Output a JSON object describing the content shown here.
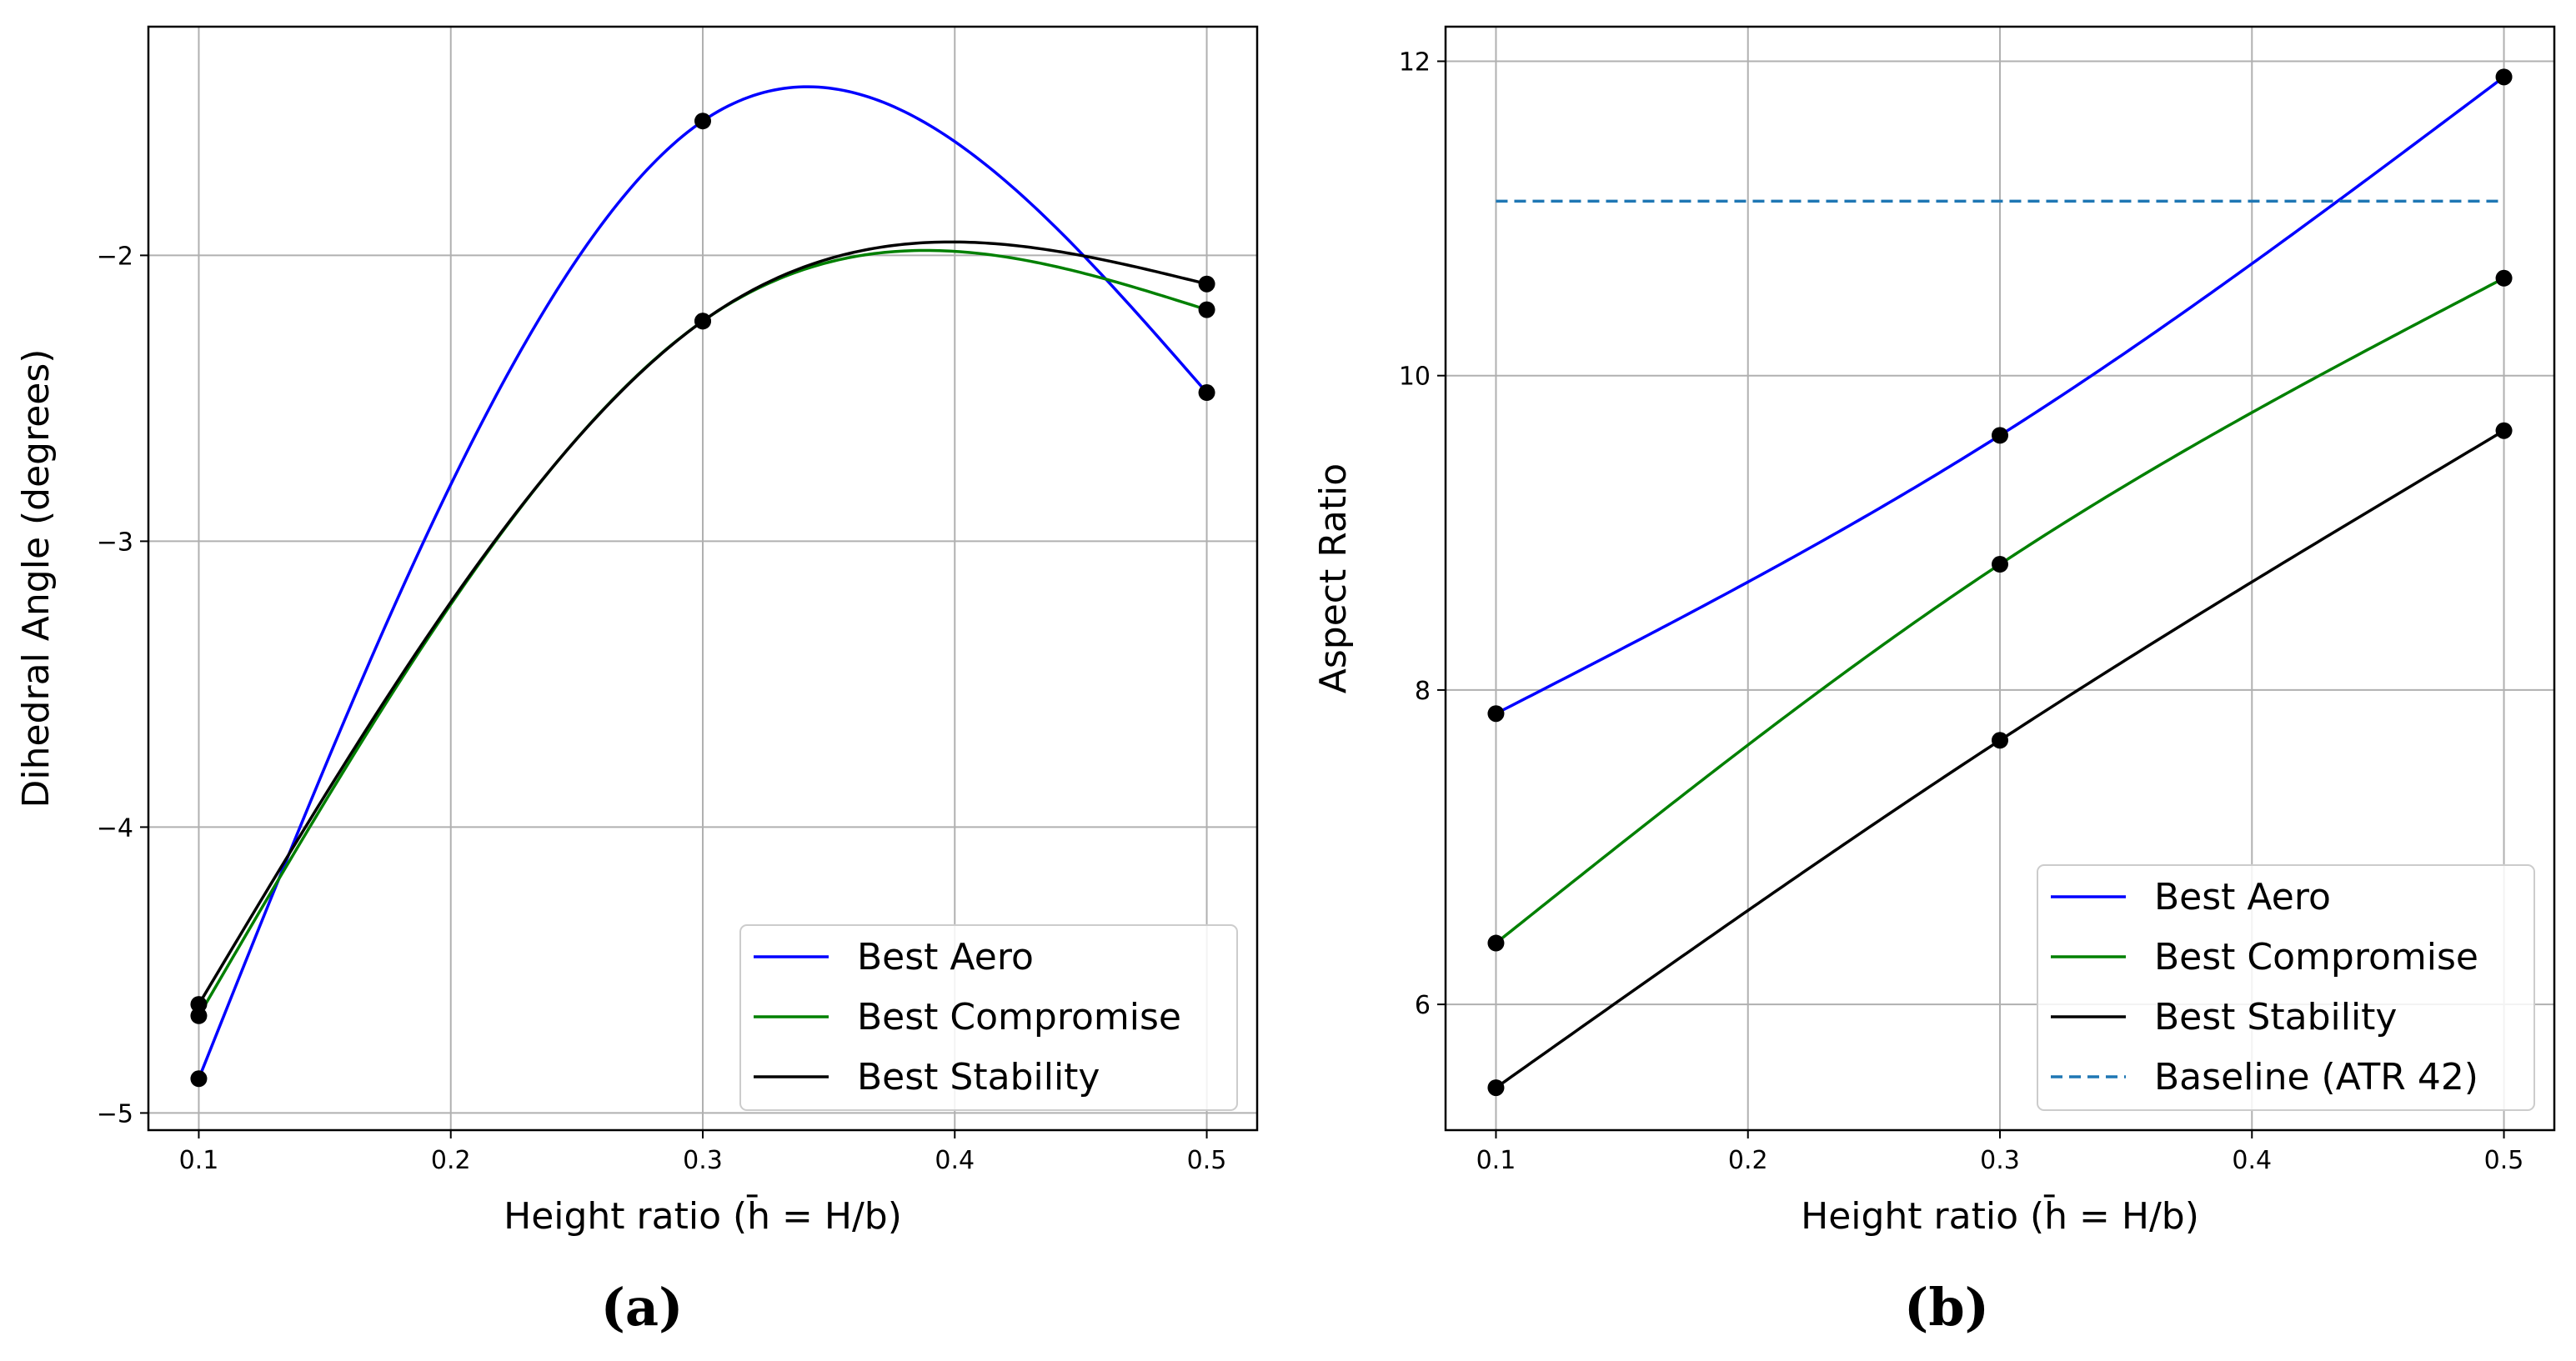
{
  "chart_data": [
    {
      "type": "line",
      "panel_label": "(a)",
      "title": "",
      "xlabel": "Height ratio (h̄ = H/b)",
      "ylabel": "Dihedral Angle (degrees)",
      "xlim": [
        0.08,
        0.52
      ],
      "ylim": [
        -5.06,
        -1.2
      ],
      "xticks": [
        0.1,
        0.2,
        0.3,
        0.4,
        0.5
      ],
      "xtick_labels": [
        "0.1",
        "0.2",
        "0.3",
        "0.4",
        "0.5"
      ],
      "yticks": [
        -5,
        -4,
        -3,
        -2
      ],
      "ytick_labels": [
        "−5",
        "−4",
        "−3",
        "−2"
      ],
      "grid": true,
      "legend_position": "lower-right",
      "series": [
        {
          "name": "Best Aero",
          "color": "#0000ff",
          "style": "solid",
          "x": [
            0.1,
            0.3,
            0.5
          ],
          "y": [
            -4.88,
            -1.53,
            -2.48
          ]
        },
        {
          "name": "Best Compromise",
          "color": "#008000",
          "style": "solid",
          "x": [
            0.1,
            0.3,
            0.5
          ],
          "y": [
            -4.66,
            -2.23,
            -2.19
          ]
        },
        {
          "name": "Best Stability",
          "color": "#000000",
          "style": "solid",
          "x": [
            0.1,
            0.3,
            0.5
          ],
          "y": [
            -4.62,
            -2.23,
            -2.1
          ]
        }
      ]
    },
    {
      "type": "line",
      "panel_label": "(b)",
      "title": "",
      "xlabel": "Height ratio (h̄ = H/b)",
      "ylabel": "Aspect Ratio",
      "xlim": [
        0.08,
        0.52
      ],
      "ylim": [
        5.2,
        12.22
      ],
      "xticks": [
        0.1,
        0.2,
        0.3,
        0.4,
        0.5
      ],
      "xtick_labels": [
        "0.1",
        "0.2",
        "0.3",
        "0.4",
        "0.5"
      ],
      "yticks": [
        6,
        8,
        10,
        12
      ],
      "ytick_labels": [
        "6",
        "8",
        "10",
        "12"
      ],
      "grid": true,
      "legend_position": "lower-right",
      "series": [
        {
          "name": "Best Aero",
          "color": "#0000ff",
          "style": "solid",
          "x": [
            0.1,
            0.3,
            0.5
          ],
          "y": [
            7.85,
            9.62,
            11.9
          ]
        },
        {
          "name": "Best Compromise",
          "color": "#008000",
          "style": "solid",
          "x": [
            0.1,
            0.3,
            0.5
          ],
          "y": [
            6.39,
            8.8,
            10.62
          ]
        },
        {
          "name": "Best Stability",
          "color": "#000000",
          "style": "solid",
          "x": [
            0.1,
            0.3,
            0.5
          ],
          "y": [
            5.47,
            7.68,
            9.65
          ]
        },
        {
          "name": "Baseline (ATR 42)",
          "color": "#1f77b4",
          "style": "dashed",
          "x": [
            0.1,
            0.5
          ],
          "y": [
            11.11,
            11.11
          ],
          "markers": false
        }
      ]
    }
  ]
}
